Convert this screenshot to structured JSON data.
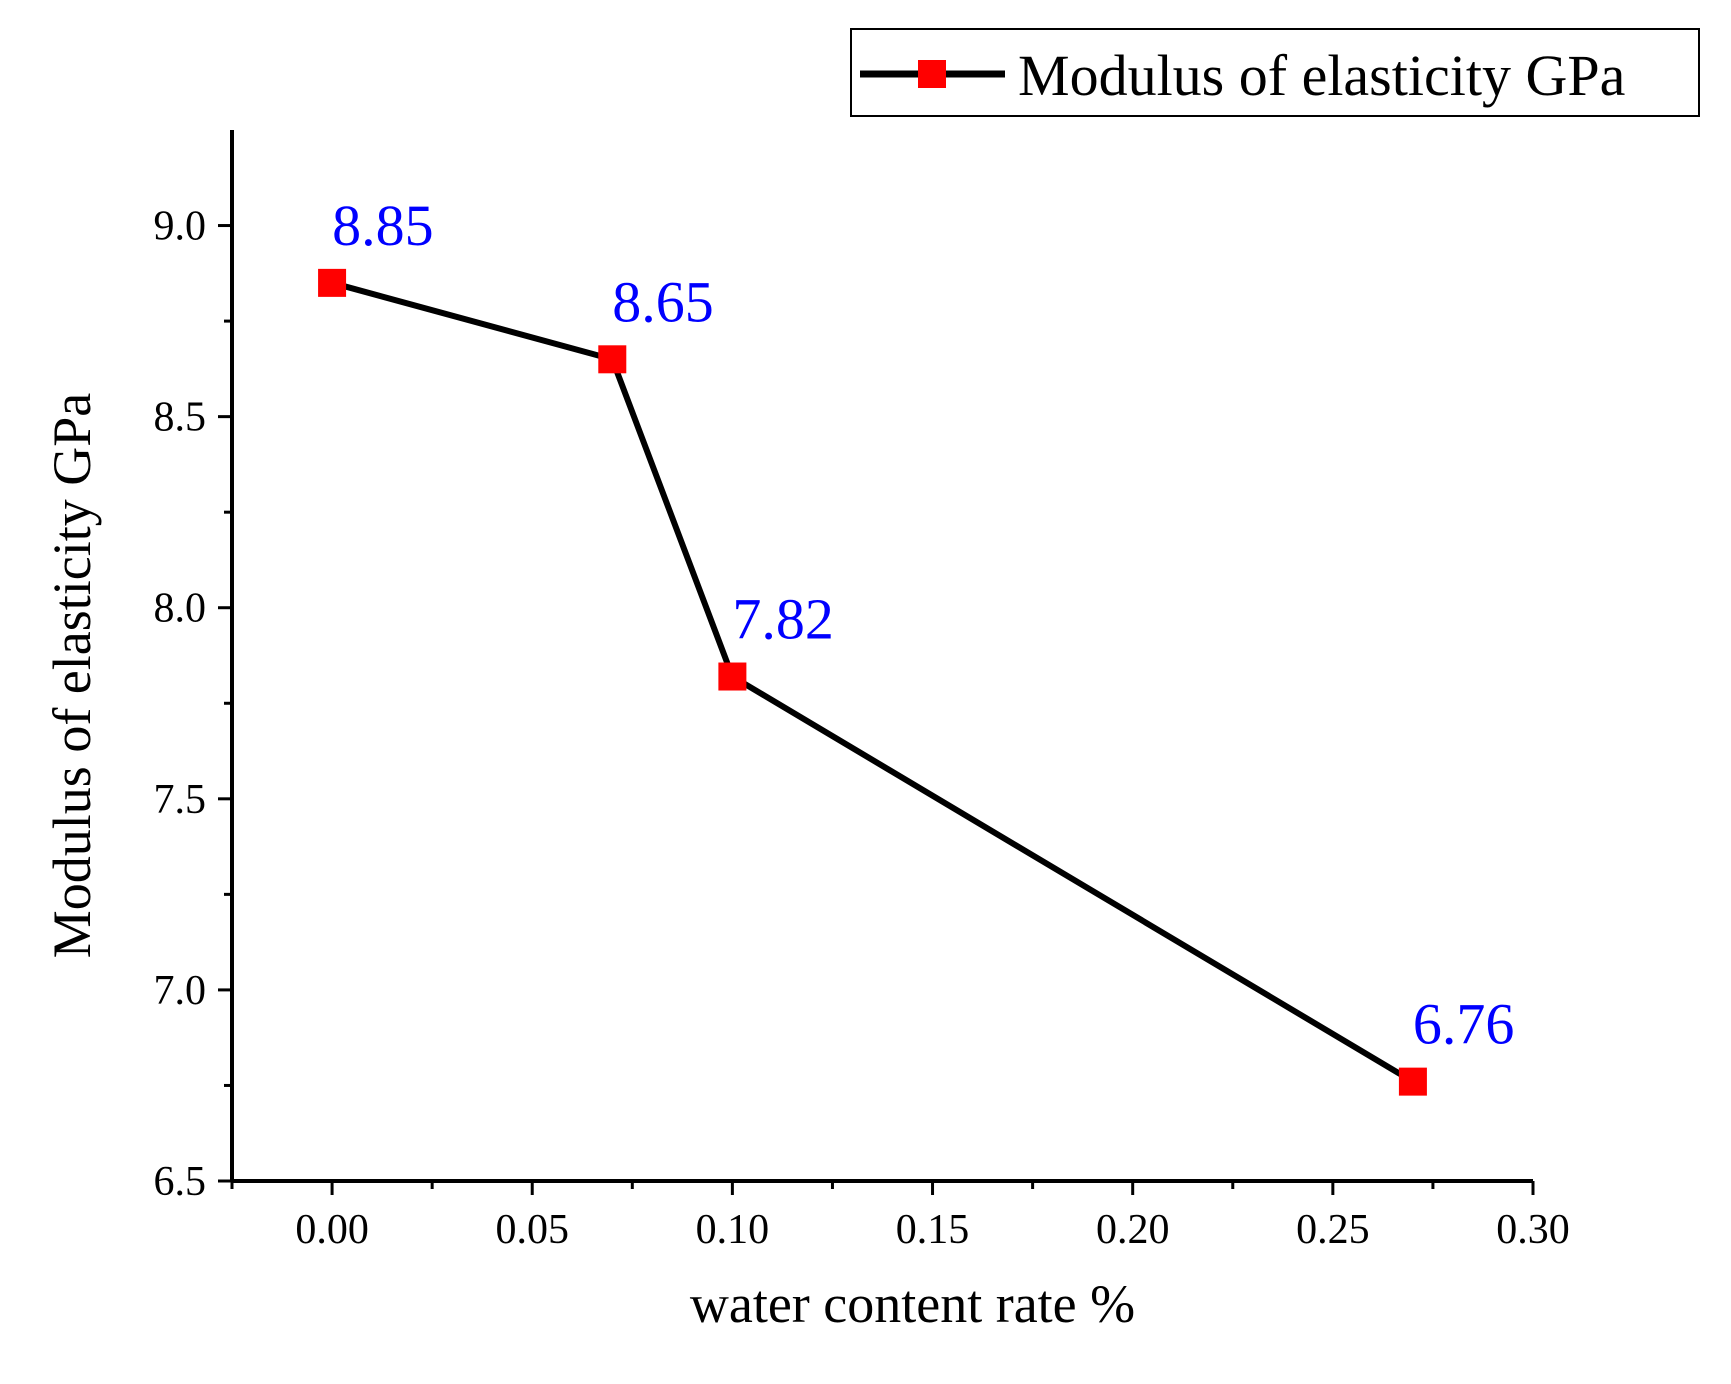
{
  "chart_data": {
    "type": "line",
    "title": "",
    "xlabel": "water content rate  %",
    "ylabel": "Modulus of elasticity GPa",
    "xlim": [
      -0.025,
      0.3
    ],
    "ylim": [
      6.5,
      9.25
    ],
    "x_ticks": [
      0.0,
      0.05,
      0.1,
      0.15,
      0.2,
      0.25,
      0.3
    ],
    "x_tick_labels": [
      "0.00",
      "0.05",
      "0.10",
      "0.15",
      "0.20",
      "0.25",
      "0.30"
    ],
    "y_ticks": [
      6.5,
      7.0,
      7.5,
      8.0,
      8.5,
      9.0
    ],
    "y_tick_labels": [
      "6.5",
      "7.0",
      "7.5",
      "8.0",
      "8.5",
      "9.0"
    ],
    "grid": false,
    "legend_position": "top-right",
    "series": [
      {
        "name": "Modulus of elasticity GPa",
        "x": [
          0.0,
          0.07,
          0.1,
          0.27
        ],
        "y": [
          8.85,
          8.65,
          7.82,
          6.76
        ],
        "data_labels": [
          "8.85",
          "8.65",
          "7.82",
          "6.76"
        ],
        "line_color": "#000000",
        "marker": "square",
        "marker_color": "#ff0000"
      }
    ],
    "data_label_color": "#0000ff"
  }
}
